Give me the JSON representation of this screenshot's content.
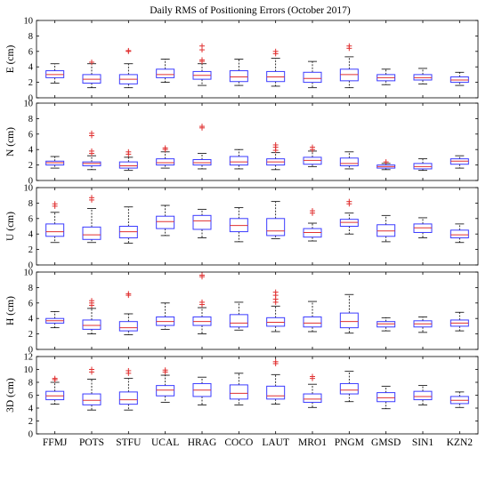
{
  "chart_data": {
    "type": "box",
    "title": "Daily RMS of Positioning Errors (October 2017)",
    "categories": [
      "FFMJ",
      "POTS",
      "STFU",
      "UCAL",
      "HRAG",
      "COCO",
      "LAUT",
      "MRO1",
      "PNGM",
      "GMSD",
      "SIN1",
      "KZN2"
    ],
    "colors": {
      "box": "#3b3bff",
      "median": "#e03030",
      "outlier": "#e03030",
      "whisker": "#000000"
    },
    "panels": [
      {
        "ylabel": "E (cm)",
        "ylim": [
          0,
          10
        ],
        "yticks": [
          0,
          2,
          4,
          6,
          8,
          10
        ],
        "boxes": [
          {
            "whisker_low": 1.9,
            "q1": 2.6,
            "median": 3.0,
            "q3": 3.5,
            "whisker_high": 4.4,
            "outliers": []
          },
          {
            "whisker_low": 1.3,
            "q1": 1.9,
            "median": 2.4,
            "q3": 3.0,
            "whisker_high": 4.4,
            "outliers": [
              4.6
            ]
          },
          {
            "whisker_low": 1.3,
            "q1": 1.8,
            "median": 2.4,
            "q3": 3.0,
            "whisker_high": 4.4,
            "outliers": [
              6.0,
              6.1
            ]
          },
          {
            "whisker_low": 2.0,
            "q1": 2.6,
            "median": 3.0,
            "q3": 3.7,
            "whisker_high": 5.0,
            "outliers": []
          },
          {
            "whisker_low": 1.6,
            "q1": 2.4,
            "median": 2.9,
            "q3": 3.4,
            "whisker_high": 4.4,
            "outliers": [
              4.7,
              4.9,
              6.2,
              6.7
            ]
          },
          {
            "whisker_low": 1.6,
            "q1": 2.1,
            "median": 2.7,
            "q3": 3.5,
            "whisker_high": 5.0,
            "outliers": []
          },
          {
            "whisker_low": 1.5,
            "q1": 2.1,
            "median": 2.7,
            "q3": 3.4,
            "whisker_high": 5.1,
            "outliers": [
              5.7,
              6.0
            ]
          },
          {
            "whisker_low": 1.3,
            "q1": 2.0,
            "median": 2.5,
            "q3": 3.3,
            "whisker_high": 4.7,
            "outliers": []
          },
          {
            "whisker_low": 1.3,
            "q1": 2.2,
            "median": 3.0,
            "q3": 3.7,
            "whisker_high": 5.3,
            "outliers": [
              6.4,
              6.7
            ]
          },
          {
            "whisker_low": 1.7,
            "q1": 2.2,
            "median": 2.6,
            "q3": 3.0,
            "whisker_high": 3.7,
            "outliers": []
          },
          {
            "whisker_low": 1.8,
            "q1": 2.3,
            "median": 2.6,
            "q3": 3.0,
            "whisker_high": 3.8,
            "outliers": []
          },
          {
            "whisker_low": 1.6,
            "q1": 2.0,
            "median": 2.3,
            "q3": 2.7,
            "whisker_high": 3.3,
            "outliers": []
          }
        ]
      },
      {
        "ylabel": "N (cm)",
        "ylim": [
          0,
          10
        ],
        "yticks": [
          0,
          2,
          4,
          6,
          8,
          10
        ],
        "boxes": [
          {
            "whisker_low": 1.6,
            "q1": 2.0,
            "median": 2.3,
            "q3": 2.5,
            "whisker_high": 3.1,
            "outliers": []
          },
          {
            "whisker_low": 1.4,
            "q1": 1.9,
            "median": 2.2,
            "q3": 2.4,
            "whisker_high": 3.2,
            "outliers": [
              3.5,
              3.8,
              5.8,
              6.1
            ]
          },
          {
            "whisker_low": 1.3,
            "q1": 1.6,
            "median": 1.9,
            "q3": 2.4,
            "whisker_high": 3.0,
            "outliers": [
              3.4,
              3.7
            ]
          },
          {
            "whisker_low": 1.6,
            "q1": 2.0,
            "median": 2.3,
            "q3": 2.8,
            "whisker_high": 3.7,
            "outliers": [
              4.0,
              4.2
            ]
          },
          {
            "whisker_low": 1.5,
            "q1": 2.0,
            "median": 2.3,
            "q3": 2.7,
            "whisker_high": 3.5,
            "outliers": [
              6.8,
              7.0
            ]
          },
          {
            "whisker_low": 1.5,
            "q1": 2.0,
            "median": 2.4,
            "q3": 3.1,
            "whisker_high": 4.0,
            "outliers": []
          },
          {
            "whisker_low": 1.4,
            "q1": 2.0,
            "median": 2.4,
            "q3": 2.8,
            "whisker_high": 3.6,
            "outliers": [
              3.9,
              4.3,
              4.6
            ]
          },
          {
            "whisker_low": 1.8,
            "q1": 2.1,
            "median": 2.6,
            "q3": 3.0,
            "whisker_high": 3.8,
            "outliers": [
              4.0,
              4.3
            ]
          },
          {
            "whisker_low": 1.5,
            "q1": 1.9,
            "median": 2.2,
            "q3": 2.9,
            "whisker_high": 3.7,
            "outliers": []
          },
          {
            "whisker_low": 1.4,
            "q1": 1.6,
            "median": 1.8,
            "q3": 2.0,
            "whisker_high": 2.2,
            "outliers": [
              2.4
            ]
          },
          {
            "whisker_low": 1.3,
            "q1": 1.5,
            "median": 1.8,
            "q3": 2.2,
            "whisker_high": 2.8,
            "outliers": []
          },
          {
            "whisker_low": 1.6,
            "q1": 2.1,
            "median": 2.5,
            "q3": 2.8,
            "whisker_high": 3.2,
            "outliers": []
          }
        ]
      },
      {
        "ylabel": "U (cm)",
        "ylim": [
          0,
          10
        ],
        "yticks": [
          0,
          2,
          4,
          6,
          8,
          10
        ],
        "boxes": [
          {
            "whisker_low": 2.9,
            "q1": 3.7,
            "median": 4.3,
            "q3": 5.3,
            "whisker_high": 6.8,
            "outliers": [
              7.6,
              7.9
            ]
          },
          {
            "whisker_low": 2.9,
            "q1": 3.3,
            "median": 3.9,
            "q3": 4.9,
            "whisker_high": 7.3,
            "outliers": [
              8.4,
              8.7
            ]
          },
          {
            "whisker_low": 2.8,
            "q1": 3.5,
            "median": 4.3,
            "q3": 5.0,
            "whisker_high": 7.5,
            "outliers": []
          },
          {
            "whisker_low": 3.8,
            "q1": 4.7,
            "median": 5.6,
            "q3": 6.3,
            "whisker_high": 7.7,
            "outliers": []
          },
          {
            "whisker_low": 3.5,
            "q1": 4.6,
            "median": 5.7,
            "q3": 6.4,
            "whisker_high": 7.2,
            "outliers": []
          },
          {
            "whisker_low": 3.0,
            "q1": 4.3,
            "median": 5.1,
            "q3": 6.0,
            "whisker_high": 7.4,
            "outliers": []
          },
          {
            "whisker_low": 3.4,
            "q1": 3.8,
            "median": 4.4,
            "q3": 6.0,
            "whisker_high": 8.2,
            "outliers": []
          },
          {
            "whisker_low": 3.1,
            "q1": 3.6,
            "median": 4.2,
            "q3": 4.7,
            "whisker_high": 5.4,
            "outliers": [
              6.7,
              7.0
            ]
          },
          {
            "whisker_low": 4.0,
            "q1": 5.0,
            "median": 5.5,
            "q3": 5.9,
            "whisker_high": 6.7,
            "outliers": [
              7.9,
              8.2
            ]
          },
          {
            "whisker_low": 3.0,
            "q1": 3.7,
            "median": 4.4,
            "q3": 5.2,
            "whisker_high": 6.4,
            "outliers": []
          },
          {
            "whisker_low": 3.5,
            "q1": 4.2,
            "median": 4.8,
            "q3": 5.3,
            "whisker_high": 6.1,
            "outliers": []
          },
          {
            "whisker_low": 2.9,
            "q1": 3.5,
            "median": 3.9,
            "q3": 4.5,
            "whisker_high": 5.3,
            "outliers": []
          }
        ]
      },
      {
        "ylabel": "H (cm)",
        "ylim": [
          0,
          10
        ],
        "yticks": [
          0,
          2,
          4,
          6,
          8,
          10
        ],
        "boxes": [
          {
            "whisker_low": 2.8,
            "q1": 3.4,
            "median": 3.7,
            "q3": 4.0,
            "whisker_high": 4.9,
            "outliers": []
          },
          {
            "whisker_low": 2.0,
            "q1": 2.6,
            "median": 3.1,
            "q3": 3.8,
            "whisker_high": 5.3,
            "outliers": [
              5.7,
              6.0,
              6.3
            ]
          },
          {
            "whisker_low": 1.9,
            "q1": 2.4,
            "median": 2.8,
            "q3": 3.6,
            "whisker_high": 4.6,
            "outliers": [
              7.0,
              7.2
            ]
          },
          {
            "whisker_low": 2.6,
            "q1": 3.1,
            "median": 3.6,
            "q3": 4.2,
            "whisker_high": 6.0,
            "outliers": []
          },
          {
            "whisker_low": 2.0,
            "q1": 3.1,
            "median": 3.6,
            "q3": 4.2,
            "whisker_high": 5.4,
            "outliers": [
              5.8,
              6.1,
              9.4,
              9.6
            ]
          },
          {
            "whisker_low": 2.5,
            "q1": 2.9,
            "median": 3.4,
            "q3": 4.5,
            "whisker_high": 6.1,
            "outliers": []
          },
          {
            "whisker_low": 2.3,
            "q1": 3.0,
            "median": 3.5,
            "q3": 4.1,
            "whisker_high": 5.6,
            "outliers": [
              6.1,
              6.5,
              7.0,
              7.4
            ]
          },
          {
            "whisker_low": 2.3,
            "q1": 2.9,
            "median": 3.4,
            "q3": 4.2,
            "whisker_high": 6.2,
            "outliers": []
          },
          {
            "whisker_low": 2.1,
            "q1": 2.8,
            "median": 3.6,
            "q3": 4.7,
            "whisker_high": 7.1,
            "outliers": []
          },
          {
            "whisker_low": 2.4,
            "q1": 2.9,
            "median": 3.3,
            "q3": 3.6,
            "whisker_high": 4.1,
            "outliers": []
          },
          {
            "whisker_low": 2.2,
            "q1": 2.9,
            "median": 3.3,
            "q3": 3.7,
            "whisker_high": 4.2,
            "outliers": []
          },
          {
            "whisker_low": 2.4,
            "q1": 3.0,
            "median": 3.4,
            "q3": 3.8,
            "whisker_high": 4.8,
            "outliers": []
          }
        ]
      },
      {
        "ylabel": "3D (cm)",
        "ylim": [
          0,
          12
        ],
        "yticks": [
          0,
          2,
          4,
          6,
          8,
          10,
          12
        ],
        "boxes": [
          {
            "whisker_low": 4.6,
            "q1": 5.3,
            "median": 5.9,
            "q3": 6.6,
            "whisker_high": 8.0,
            "outliers": [
              8.4,
              8.6
            ]
          },
          {
            "whisker_low": 3.7,
            "q1": 4.5,
            "median": 5.2,
            "q3": 6.2,
            "whisker_high": 8.5,
            "outliers": [
              9.6,
              10.0
            ]
          },
          {
            "whisker_low": 3.7,
            "q1": 4.6,
            "median": 5.3,
            "q3": 6.5,
            "whisker_high": 8.6,
            "outliers": [
              9.4,
              9.8
            ]
          },
          {
            "whisker_low": 4.9,
            "q1": 5.9,
            "median": 6.8,
            "q3": 7.5,
            "whisker_high": 9.1,
            "outliers": [
              9.6,
              9.9
            ]
          },
          {
            "whisker_low": 4.5,
            "q1": 5.8,
            "median": 6.8,
            "q3": 7.8,
            "whisker_high": 8.8,
            "outliers": []
          },
          {
            "whisker_low": 4.5,
            "q1": 5.4,
            "median": 6.3,
            "q3": 7.6,
            "whisker_high": 9.4,
            "outliers": []
          },
          {
            "whisker_low": 4.6,
            "q1": 5.4,
            "median": 5.9,
            "q3": 7.4,
            "whisker_high": 9.2,
            "outliers": [
              10.9,
              11.2
            ]
          },
          {
            "whisker_low": 4.1,
            "q1": 4.9,
            "median": 5.4,
            "q3": 6.2,
            "whisker_high": 7.7,
            "outliers": [
              8.6,
              8.9
            ]
          },
          {
            "whisker_low": 5.0,
            "q1": 6.2,
            "median": 6.8,
            "q3": 7.8,
            "whisker_high": 9.7,
            "outliers": []
          },
          {
            "whisker_low": 3.9,
            "q1": 5.0,
            "median": 5.6,
            "q3": 6.4,
            "whisker_high": 7.4,
            "outliers": []
          },
          {
            "whisker_low": 4.5,
            "q1": 5.3,
            "median": 5.8,
            "q3": 6.6,
            "whisker_high": 7.5,
            "outliers": []
          },
          {
            "whisker_low": 4.1,
            "q1": 4.7,
            "median": 5.2,
            "q3": 5.8,
            "whisker_high": 6.5,
            "outliers": []
          }
        ]
      }
    ]
  }
}
